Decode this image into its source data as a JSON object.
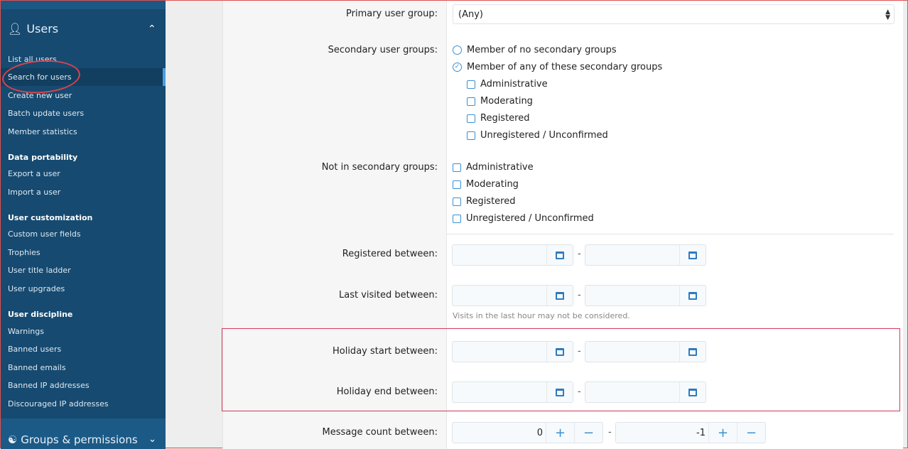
{
  "sidebar": {
    "section_title": "Users",
    "items": [
      "List all users",
      "Search for users",
      "Create new user",
      "Batch update users",
      "Member statistics"
    ],
    "data_portability": {
      "title": "Data portability",
      "items": [
        "Export a user",
        "Import a user"
      ]
    },
    "user_customization": {
      "title": "User customization",
      "items": [
        "Custom user fields",
        "Trophies",
        "User title ladder",
        "User upgrades"
      ]
    },
    "user_discipline": {
      "title": "User discipline",
      "items": [
        "Warnings",
        "Banned users",
        "Banned emails",
        "Banned IP addresses",
        "Discouraged IP addresses"
      ]
    },
    "groups_title": "Groups & permissions"
  },
  "form": {
    "primary_group": {
      "label": "Primary user group:",
      "value": "(Any)"
    },
    "secondary": {
      "label": "Secondary user groups:",
      "options": [
        "Member of no secondary groups",
        "Member of any of these secondary groups"
      ],
      "selected": 1,
      "groups": [
        "Administrative",
        "Moderating",
        "Registered",
        "Unregistered / Unconfirmed"
      ]
    },
    "not_secondary": {
      "label": "Not in secondary groups:",
      "groups": [
        "Administrative",
        "Moderating",
        "Registered",
        "Unregistered / Unconfirmed"
      ]
    },
    "registered": {
      "label": "Registered between:"
    },
    "last_visited": {
      "label": "Last visited between:",
      "hint": "Visits in the last hour may not be considered."
    },
    "holiday_start": {
      "label": "Holiday start between:"
    },
    "holiday_end": {
      "label": "Holiday end between:"
    },
    "message_count": {
      "label": "Message count between:",
      "min": "0",
      "max": "-1"
    },
    "separator": "-"
  },
  "colors": {
    "sidebar": "#164a70",
    "accent": "#3b8fd0",
    "highlight": "#d33a5a"
  }
}
